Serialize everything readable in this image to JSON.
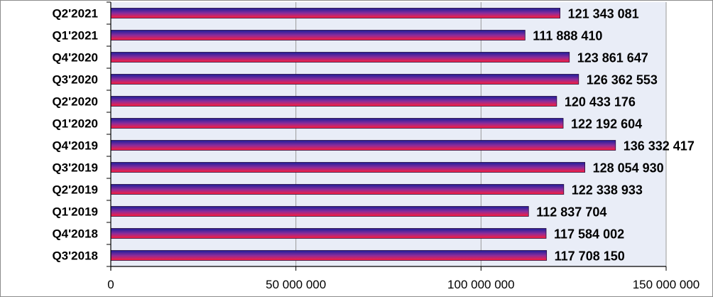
{
  "chart_data": {
    "type": "bar",
    "orientation": "horizontal",
    "categories": [
      "Q2'2021",
      "Q1'2021",
      "Q4'2020",
      "Q3'2020",
      "Q2'2020",
      "Q1'2020",
      "Q4'2019",
      "Q3'2019",
      "Q2'2019",
      "Q1'2019",
      "Q4'2018",
      "Q3'2018"
    ],
    "values": [
      121343081,
      111888410,
      123861647,
      126362553,
      120433176,
      122192604,
      136332417,
      128054930,
      122338933,
      112837704,
      117584002,
      117708150
    ],
    "value_labels": [
      "121 343 081",
      "111 888 410",
      "123 861 647",
      "126 362 553",
      "120 433 176",
      "122 192 604",
      "136 332 417",
      "128 054 930",
      "122 338 933",
      "112 837 704",
      "117 584 002",
      "117 708 150"
    ],
    "xlim": [
      0,
      150000000
    ],
    "xticks": [
      0,
      50000000,
      100000000,
      150000000
    ],
    "xtick_labels": [
      "0",
      "50 000 000",
      "100 000 000",
      "150 000 000"
    ],
    "grid": true,
    "legend": "none",
    "colors": {
      "plot_background": "#e9edf7",
      "gridline": "#9a9a9a",
      "bar_gradient_top": "#1c1f9a",
      "bar_gradient_mid": "#8a2c9c",
      "bar_gradient_bottom": "#ff1f3c",
      "bar_outline": "#2a0a3c"
    }
  }
}
